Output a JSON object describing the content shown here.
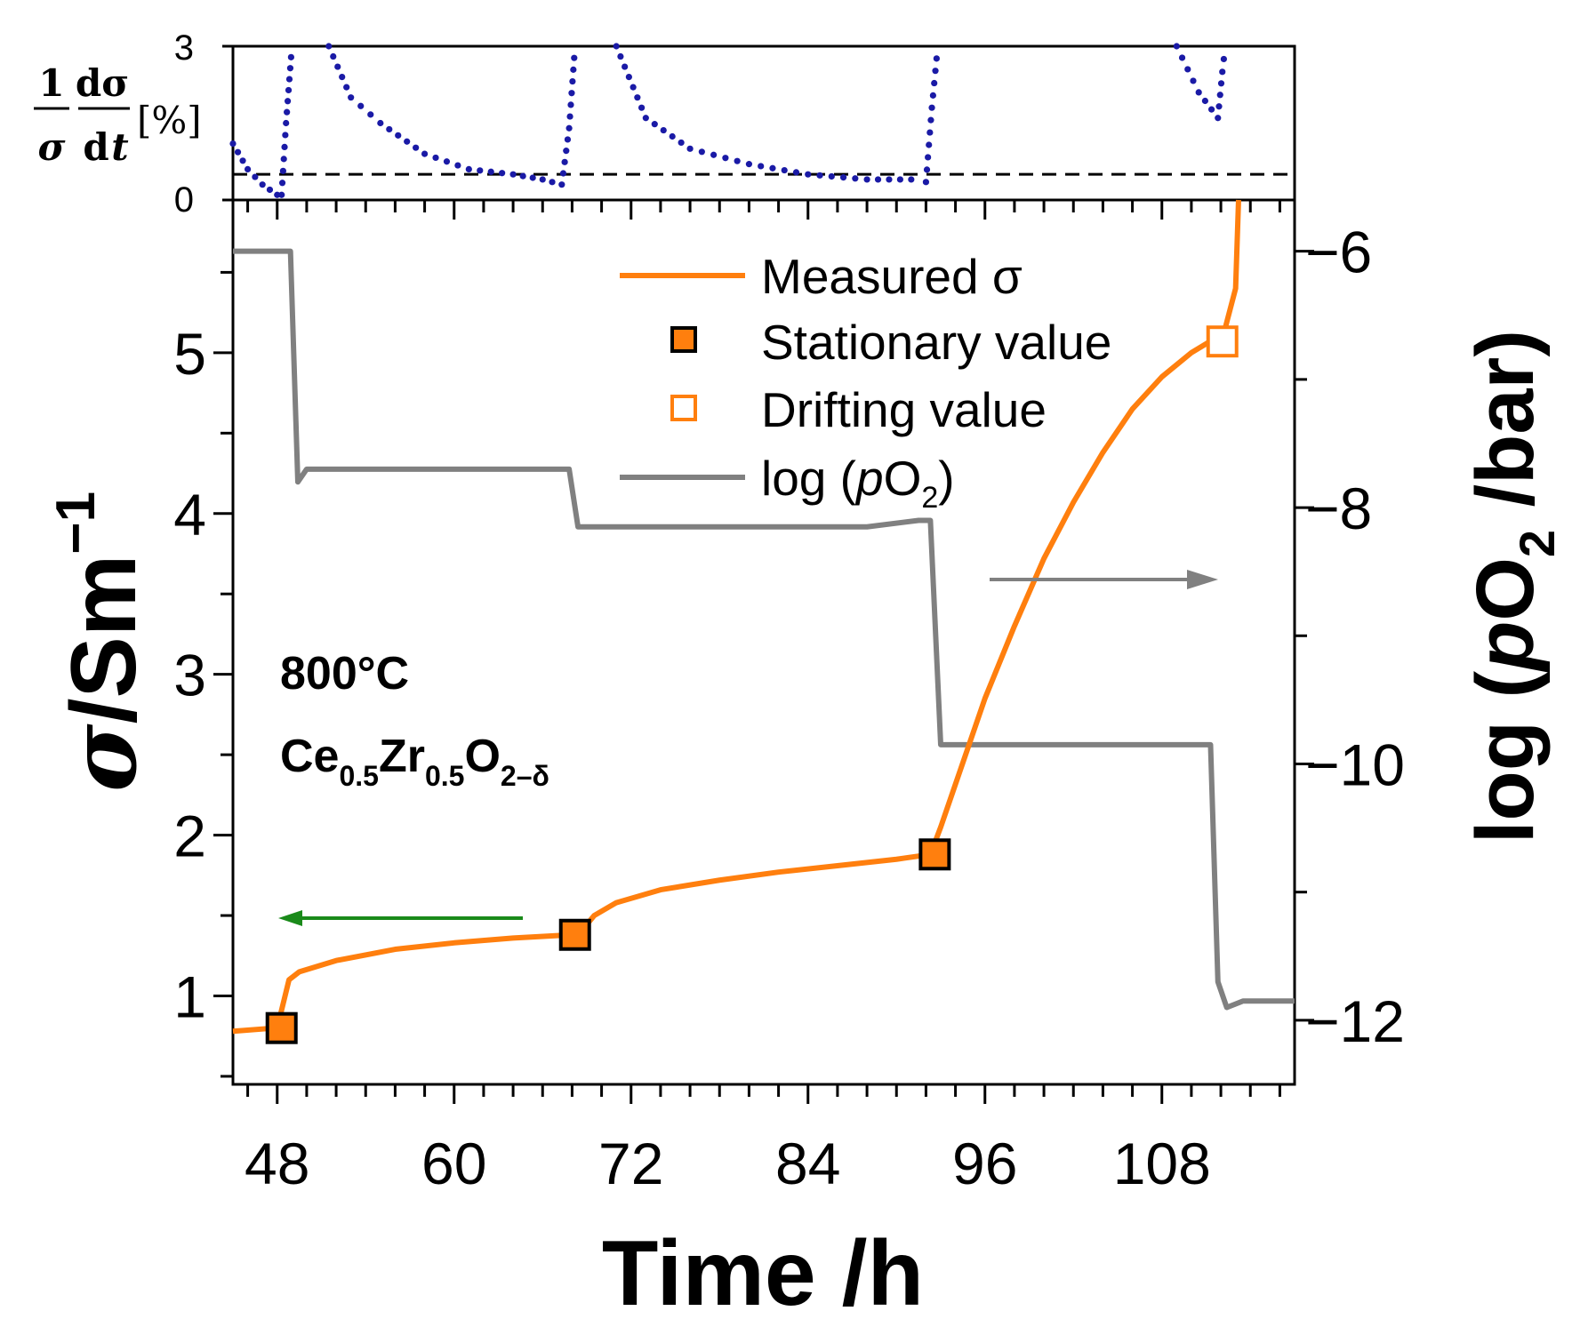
{
  "chart_data": [
    {
      "id": "derivative-panel",
      "type": "scatter",
      "ylabel": {
        "num1": "1",
        "den1": "σ",
        "num2": "dσ",
        "den2": "d",
        "den2_italic": "t",
        "unit": "[%]"
      },
      "xlim": [
        45,
        117
      ],
      "ylim": [
        0,
        3
      ],
      "yticks": [
        "0",
        "3"
      ],
      "threshold": 0.5,
      "colors": {
        "dots": "#1a1aa6",
        "threshold": "#000000"
      },
      "series": [
        {
          "name": "dsigma_rate",
          "x": [
            45,
            46,
            47,
            48,
            48.3,
            48.6,
            49
          ],
          "y": [
            1.1,
            0.6,
            0.3,
            0.1,
            0.1,
            1.5,
            3.0
          ]
        },
        {
          "name": "dsigma_rate",
          "x": [
            51.5,
            53,
            55,
            58,
            61,
            64,
            66,
            67.3,
            67.8,
            68.2
          ],
          "y": [
            3.0,
            2.0,
            1.5,
            0.9,
            0.6,
            0.5,
            0.4,
            0.3,
            1.4,
            3.0
          ]
        },
        {
          "name": "dsigma_rate",
          "x": [
            71,
            73,
            76,
            80,
            84,
            88,
            91,
            92,
            92.4,
            92.8
          ],
          "y": [
            3.0,
            1.6,
            1.0,
            0.7,
            0.5,
            0.4,
            0.4,
            0.35,
            1.8,
            3.0
          ]
        },
        {
          "name": "dsigma_rate",
          "x": [
            109,
            110.5,
            111.8,
            112.1,
            112.3
          ],
          "y": [
            3.0,
            2.1,
            1.6,
            2.5,
            3.0
          ]
        }
      ]
    },
    {
      "id": "main-panel",
      "type": "line",
      "xlabel": "Time /h",
      "xlim": [
        45,
        117
      ],
      "xticks": [
        "48",
        "60",
        "72",
        "84",
        "96",
        "108"
      ],
      "ylabel_left": {
        "symbol": "σ",
        "unit": "/Sm",
        "sup": "−1"
      },
      "ylim_left": [
        0.45,
        5.95
      ],
      "yticks_left": [
        "1",
        "2",
        "3",
        "4",
        "5"
      ],
      "ylabel_right": {
        "pre": "log (",
        "p": "p",
        "o": "O",
        "sub": "2",
        "unit": " /bar)"
      },
      "ylim_right": [
        -12.5,
        -5.6
      ],
      "yticks_right": [
        "−6",
        "−8",
        "−10",
        "−12"
      ],
      "colors": {
        "sigma": "#ff7f0e",
        "logpo2": "#808080",
        "arrow_left": "#1a8a1a",
        "arrow_right": "#808080"
      },
      "series": [
        {
          "name": "Measured σ",
          "axis": "left",
          "x": [
            45,
            47.8,
            48,
            48.8,
            49.5,
            52,
            56,
            60,
            64,
            68,
            68.6,
            69.5,
            71,
            74,
            78,
            82,
            86,
            90,
            92.3,
            93,
            94.5,
            96,
            98,
            100,
            102,
            104,
            106,
            108,
            110,
            111.8,
            112.2,
            113,
            113.2
          ],
          "y": [
            0.78,
            0.8,
            0.8,
            1.1,
            1.15,
            1.22,
            1.29,
            1.33,
            1.36,
            1.38,
            1.4,
            1.5,
            1.58,
            1.66,
            1.72,
            1.77,
            1.81,
            1.85,
            1.88,
            2.05,
            2.45,
            2.85,
            3.3,
            3.72,
            4.07,
            4.38,
            4.65,
            4.85,
            5.0,
            5.1,
            5.12,
            5.4,
            5.95
          ]
        },
        {
          "name": "log (pO2)",
          "axis": "right",
          "x": [
            45,
            48.9,
            49.4,
            50,
            54,
            58,
            62,
            66,
            67.8,
            68.4,
            69,
            72,
            76,
            80,
            84,
            88,
            91.5,
            92.3,
            93,
            93.5,
            96,
            100,
            104,
            108,
            110.8,
            111.3,
            111.8,
            112.4,
            113.5,
            117
          ],
          "y": [
            -6.0,
            -6.0,
            -7.8,
            -7.7,
            -7.7,
            -7.7,
            -7.7,
            -7.7,
            -7.7,
            -8.15,
            -8.15,
            -8.15,
            -8.15,
            -8.15,
            -8.15,
            -8.15,
            -8.1,
            -8.1,
            -9.85,
            -9.85,
            -9.85,
            -9.85,
            -9.85,
            -9.85,
            -9.85,
            -9.85,
            -11.7,
            -11.9,
            -11.85,
            -11.85
          ]
        },
        {
          "name": "Stationary value",
          "axis": "left",
          "marker": "filled-square",
          "x": [
            48.3,
            68.2,
            92.6
          ],
          "y": [
            0.8,
            1.38,
            1.88
          ]
        },
        {
          "name": "Drifting value",
          "axis": "left",
          "marker": "open-square",
          "x": [
            112.1
          ],
          "y": [
            5.07
          ]
        }
      ],
      "legend": {
        "position": "top-right",
        "entries": [
          "Measured σ",
          "Stationary value",
          "Drifting value"
        ],
        "entry_po2": {
          "pre": "log (",
          "p": "p",
          "o": "O",
          "sub": "2",
          "post": ")"
        }
      },
      "annotations": {
        "temperature": "800°C",
        "composition": {
          "a": "Ce",
          "a_sub": "0.5",
          "b": "Zr",
          "b_sub": "0.5",
          "c": "O",
          "c_sub": "2–δ"
        }
      }
    }
  ]
}
